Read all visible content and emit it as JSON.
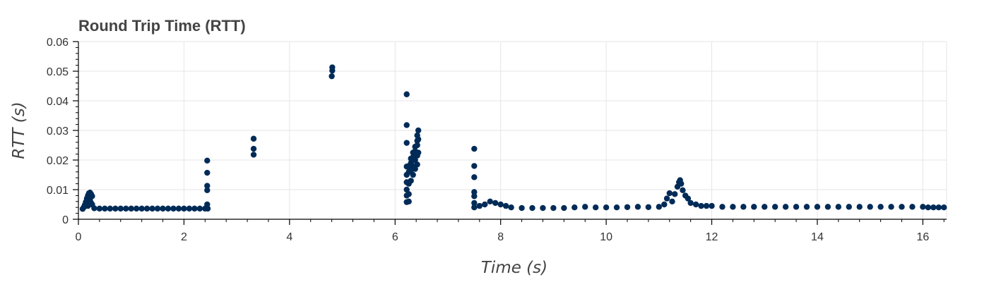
{
  "chart_data": {
    "type": "scatter",
    "title": "Round Trip Time (RTT)",
    "xlabel": "Time (s)",
    "ylabel": "RTT (s)",
    "xlim": [
      0,
      16.45
    ],
    "ylim": [
      0,
      0.06
    ],
    "grid": true,
    "legend": "none",
    "x_ticks": [
      0,
      2,
      4,
      6,
      8,
      10,
      12,
      14,
      16
    ],
    "x_tick_labels": [
      "0",
      "2",
      "4",
      "6",
      "8",
      "10",
      "12",
      "14",
      "16"
    ],
    "y_ticks": [
      0,
      0.01,
      0.02,
      0.03,
      0.04,
      0.05,
      0.06
    ],
    "y_tick_labels": [
      "0",
      "0.01",
      "0.02",
      "0.03",
      "0.04",
      "0.05",
      "0.06"
    ],
    "marker_color": "#002b57",
    "series": [
      {
        "values": [
          [
            0.08,
            0.0035
          ],
          [
            0.1,
            0.004
          ],
          [
            0.12,
            0.0048
          ],
          [
            0.14,
            0.0058
          ],
          [
            0.16,
            0.007
          ],
          [
            0.18,
            0.008
          ],
          [
            0.2,
            0.0088
          ],
          [
            0.22,
            0.009
          ],
          [
            0.24,
            0.0085
          ],
          [
            0.26,
            0.0078
          ],
          [
            0.22,
            0.0065
          ],
          [
            0.24,
            0.0055
          ],
          [
            0.2,
            0.005
          ],
          [
            0.18,
            0.0045
          ],
          [
            0.26,
            0.005
          ],
          [
            0.3,
            0.0037
          ],
          [
            0.4,
            0.0036
          ],
          [
            0.5,
            0.0036
          ],
          [
            0.6,
            0.0036
          ],
          [
            0.7,
            0.0036
          ],
          [
            0.8,
            0.0036
          ],
          [
            0.9,
            0.0036
          ],
          [
            1.0,
            0.0036
          ],
          [
            1.1,
            0.0036
          ],
          [
            1.2,
            0.0036
          ],
          [
            1.3,
            0.0036
          ],
          [
            1.4,
            0.0036
          ],
          [
            1.5,
            0.0036
          ],
          [
            1.6,
            0.0036
          ],
          [
            1.7,
            0.0036
          ],
          [
            1.8,
            0.0036
          ],
          [
            1.9,
            0.0036
          ],
          [
            2.0,
            0.0036
          ],
          [
            2.1,
            0.0036
          ],
          [
            2.2,
            0.0036
          ],
          [
            2.3,
            0.0036
          ],
          [
            2.4,
            0.0036
          ],
          [
            2.45,
            0.0036
          ],
          [
            2.44,
            0.005
          ],
          [
            2.44,
            0.0098
          ],
          [
            2.44,
            0.0113
          ],
          [
            2.44,
            0.0157
          ],
          [
            2.44,
            0.0198
          ],
          [
            3.32,
            0.0218
          ],
          [
            3.32,
            0.0238
          ],
          [
            3.32,
            0.0272
          ],
          [
            4.8,
            0.0483
          ],
          [
            4.81,
            0.0502
          ],
          [
            4.81,
            0.0513
          ],
          [
            6.22,
            0.0058
          ],
          [
            6.22,
            0.008
          ],
          [
            6.22,
            0.01
          ],
          [
            6.22,
            0.0125
          ],
          [
            6.22,
            0.015
          ],
          [
            6.22,
            0.0178
          ],
          [
            6.22,
            0.0258
          ],
          [
            6.22,
            0.0318
          ],
          [
            6.22,
            0.0422
          ],
          [
            6.26,
            0.006
          ],
          [
            6.26,
            0.0085
          ],
          [
            6.26,
            0.012
          ],
          [
            6.26,
            0.016
          ],
          [
            6.26,
            0.018
          ],
          [
            6.3,
            0.013
          ],
          [
            6.3,
            0.0165
          ],
          [
            6.3,
            0.019
          ],
          [
            6.3,
            0.0205
          ],
          [
            6.34,
            0.015
          ],
          [
            6.34,
            0.018
          ],
          [
            6.34,
            0.021
          ],
          [
            6.34,
            0.0225
          ],
          [
            6.38,
            0.017
          ],
          [
            6.38,
            0.02
          ],
          [
            6.38,
            0.023
          ],
          [
            6.38,
            0.0245
          ],
          [
            6.42,
            0.0185
          ],
          [
            6.42,
            0.0215
          ],
          [
            6.42,
            0.025
          ],
          [
            6.42,
            0.0265
          ],
          [
            6.42,
            0.0283
          ],
          [
            6.44,
            0.0225
          ],
          [
            6.44,
            0.027
          ],
          [
            6.44,
            0.03
          ],
          [
            7.5,
            0.004
          ],
          [
            7.5,
            0.0055
          ],
          [
            7.5,
            0.0078
          ],
          [
            7.5,
            0.0092
          ],
          [
            7.5,
            0.0142
          ],
          [
            7.5,
            0.018
          ],
          [
            7.5,
            0.0238
          ],
          [
            7.6,
            0.0045
          ],
          [
            7.7,
            0.005
          ],
          [
            7.8,
            0.006
          ],
          [
            7.9,
            0.0055
          ],
          [
            8.0,
            0.005
          ],
          [
            8.1,
            0.0045
          ],
          [
            8.2,
            0.004
          ],
          [
            8.4,
            0.0038
          ],
          [
            8.6,
            0.0038
          ],
          [
            8.8,
            0.0038
          ],
          [
            9.0,
            0.0038
          ],
          [
            9.2,
            0.0038
          ],
          [
            9.4,
            0.004
          ],
          [
            9.6,
            0.0042
          ],
          [
            9.8,
            0.004
          ],
          [
            10.0,
            0.004
          ],
          [
            10.2,
            0.004
          ],
          [
            10.4,
            0.0041
          ],
          [
            10.6,
            0.0042
          ],
          [
            10.8,
            0.0041
          ],
          [
            11.0,
            0.0042
          ],
          [
            11.1,
            0.005
          ],
          [
            11.15,
            0.007
          ],
          [
            11.2,
            0.0088
          ],
          [
            11.25,
            0.006
          ],
          [
            11.3,
            0.0085
          ],
          [
            11.35,
            0.011
          ],
          [
            11.38,
            0.0125
          ],
          [
            11.4,
            0.0132
          ],
          [
            11.42,
            0.012
          ],
          [
            11.45,
            0.0098
          ],
          [
            11.5,
            0.008
          ],
          [
            11.55,
            0.007
          ],
          [
            11.6,
            0.0055
          ],
          [
            11.7,
            0.005
          ],
          [
            11.8,
            0.0045
          ],
          [
            11.9,
            0.0045
          ],
          [
            12.0,
            0.0045
          ],
          [
            12.2,
            0.0042
          ],
          [
            12.4,
            0.0042
          ],
          [
            12.6,
            0.0042
          ],
          [
            12.8,
            0.0042
          ],
          [
            13.0,
            0.0042
          ],
          [
            13.2,
            0.0042
          ],
          [
            13.4,
            0.0042
          ],
          [
            13.6,
            0.0042
          ],
          [
            13.8,
            0.0042
          ],
          [
            14.0,
            0.0042
          ],
          [
            14.2,
            0.0042
          ],
          [
            14.4,
            0.0042
          ],
          [
            14.6,
            0.0042
          ],
          [
            14.8,
            0.0042
          ],
          [
            15.0,
            0.0042
          ],
          [
            15.2,
            0.0042
          ],
          [
            15.4,
            0.0042
          ],
          [
            15.6,
            0.0042
          ],
          [
            15.8,
            0.0042
          ],
          [
            16.0,
            0.0042
          ],
          [
            16.1,
            0.004
          ],
          [
            16.2,
            0.004
          ],
          [
            16.3,
            0.004
          ],
          [
            16.4,
            0.004
          ]
        ]
      }
    ]
  }
}
